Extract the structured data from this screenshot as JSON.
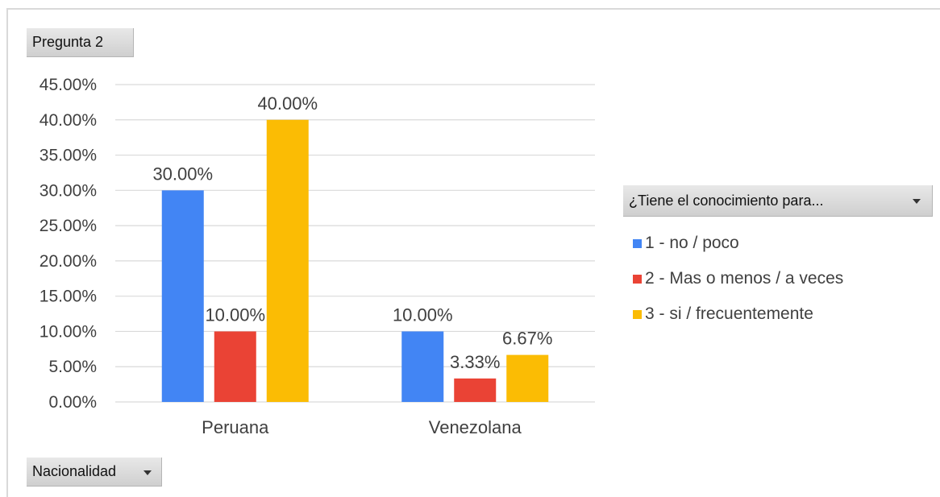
{
  "report_filter": {
    "label": "Pregunta 2"
  },
  "axis_field": {
    "label": "Nacionalidad"
  },
  "legend_field": {
    "label": "¿Tiene el conocimiento para..."
  },
  "chart_data": {
    "type": "bar",
    "categories": [
      "Peruana",
      "Venezolana"
    ],
    "series": [
      {
        "name": "1 - no / poco",
        "color": "#4285f4",
        "values": [
          0.3,
          0.1
        ],
        "labels": [
          "30.00%",
          "10.00%"
        ]
      },
      {
        "name": "2 - Mas o menos / a veces",
        "color": "#ea4335",
        "values": [
          0.1,
          0.0333
        ],
        "labels": [
          "10.00%",
          "3.33%"
        ]
      },
      {
        "name": "3 - si / frecuentemente",
        "color": "#fbbc04",
        "values": [
          0.4,
          0.0667
        ],
        "labels": [
          "40.00%",
          "6.67%"
        ]
      }
    ],
    "ylim": [
      0,
      0.45
    ],
    "yticks": [
      0,
      0.05,
      0.1,
      0.15,
      0.2,
      0.25,
      0.3,
      0.35,
      0.4,
      0.45
    ],
    "ytick_labels": [
      "0.00%",
      "5.00%",
      "10.00%",
      "15.00%",
      "20.00%",
      "25.00%",
      "30.00%",
      "35.00%",
      "40.00%",
      "45.00%"
    ],
    "grid": true,
    "legend_position": "right",
    "title": "",
    "xlabel": "",
    "ylabel": ""
  }
}
